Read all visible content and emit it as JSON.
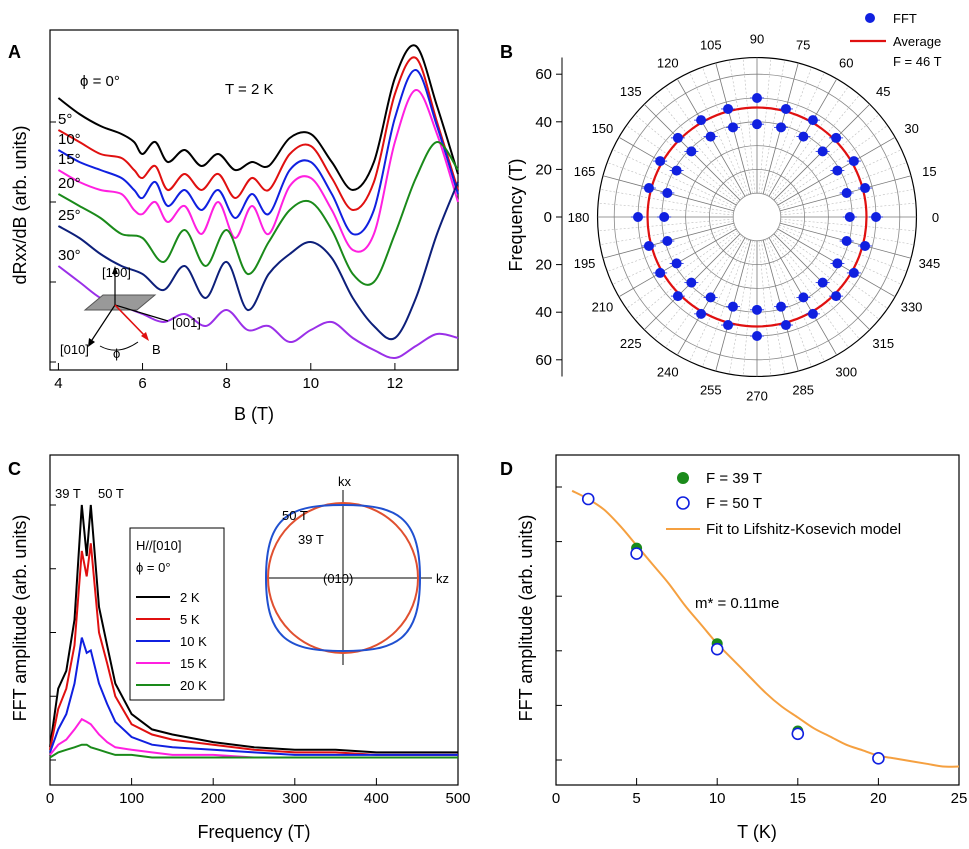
{
  "panels": {
    "A": {
      "letter": "A",
      "temp": "T = 2 K",
      "ylabel": "dRxx/dB (arb. units)",
      "xlabel": "B (T)",
      "inset": {
        "z": "[100]",
        "x": "[001]",
        "y": "[010]",
        "phi": "ϕ",
        "b": "B"
      }
    },
    "B": {
      "letter": "B",
      "ylabel": "Frequency (T)",
      "legend_fft": "FFT",
      "legend_avg": "Average",
      "avg_note": "F = 46 T"
    },
    "C": {
      "letter": "C",
      "xlabel": "Frequency (T)",
      "ylabel": "FFT amplitude (arb. units)",
      "peak1": "39 T",
      "peak2": "50 T",
      "legend_title1": "H//[010]",
      "legend_title2": "ϕ = 0°",
      "inset": {
        "kx": "kx",
        "kz": "kz",
        "plane": "(010)",
        "outer": "50 T",
        "inner": "39 T"
      }
    },
    "D": {
      "letter": "D",
      "xlabel": "T (K)",
      "ylabel": "FFT amplitude (arb. units)",
      "mass": "m* = 0.11me"
    }
  },
  "chart_data": [
    {
      "type": "line",
      "panel": "A",
      "xlabel": "B (T)",
      "ylabel": "dRxx/dB (arb. units)",
      "xlim": [
        3.8,
        13.5
      ],
      "xticks": [
        4,
        6,
        8,
        10,
        12
      ],
      "series": [
        {
          "name": "ϕ = 0°",
          "color": "#000000",
          "x": [
            4,
            4.5,
            5,
            5.5,
            5.8,
            6,
            6.3,
            6.6,
            7,
            7.4,
            7.8,
            8.2,
            8.6,
            9,
            9.5,
            10,
            10.5,
            11,
            11.5,
            12,
            12.5,
            13,
            13.5
          ],
          "y": [
            8.6,
            8.2,
            7.9,
            7.7,
            7.5,
            7.2,
            7.5,
            7.0,
            7.3,
            6.9,
            7.2,
            6.8,
            7.0,
            6.9,
            7.6,
            7.7,
            7.0,
            6.3,
            7.0,
            9.1,
            9.9,
            8.4,
            6.7
          ]
        },
        {
          "name": "5°",
          "color": "#e01010",
          "x": [
            4,
            4.5,
            5,
            5.5,
            5.8,
            6,
            6.3,
            6.6,
            7,
            7.4,
            7.8,
            8.2,
            8.6,
            9,
            9.5,
            10,
            10.5,
            11,
            11.5,
            12,
            12.5,
            13,
            13.5
          ],
          "y": [
            7.8,
            7.5,
            7.2,
            7.1,
            6.8,
            6.6,
            6.9,
            6.3,
            6.7,
            6.3,
            6.7,
            6.1,
            6.6,
            6.3,
            7.2,
            7.4,
            6.6,
            5.8,
            6.5,
            8.7,
            9.6,
            8.0,
            6.3
          ]
        },
        {
          "name": "10°",
          "color": "#1020e0",
          "x": [
            4,
            4.5,
            5,
            5.5,
            5.8,
            6,
            6.3,
            6.6,
            7,
            7.4,
            7.8,
            8.2,
            8.6,
            9,
            9.5,
            10,
            10.5,
            11,
            11.5,
            12,
            12.5,
            13,
            13.5
          ],
          "y": [
            7.3,
            7.0,
            6.8,
            6.6,
            6.3,
            6.1,
            6.5,
            5.9,
            6.3,
            5.8,
            6.3,
            5.6,
            6.2,
            5.7,
            6.8,
            7.0,
            6.2,
            5.2,
            5.8,
            8.1,
            9.3,
            7.9,
            6.2
          ]
        },
        {
          "name": "15°",
          "color": "#ff20e0",
          "x": [
            4,
            4.5,
            5,
            5.5,
            5.8,
            6,
            6.3,
            6.6,
            7,
            7.4,
            7.8,
            8.2,
            8.6,
            9,
            9.5,
            10,
            10.5,
            11,
            11.5,
            12,
            12.5,
            13,
            13.5
          ],
          "y": [
            6.8,
            6.5,
            6.3,
            6.2,
            5.8,
            5.7,
            6.0,
            5.5,
            5.9,
            5.2,
            6.0,
            5.1,
            5.9,
            5.2,
            6.4,
            6.6,
            5.8,
            4.8,
            5.2,
            7.5,
            8.8,
            7.7,
            6.0
          ]
        },
        {
          "name": "20°",
          "color": "#1a8a1a",
          "x": [
            4,
            4.5,
            5,
            5.5,
            6,
            6.5,
            7,
            7.5,
            8,
            8.5,
            9,
            9.5,
            10,
            10.5,
            11,
            11.5,
            12,
            12.5,
            13,
            13.5
          ],
          "y": [
            6.2,
            5.9,
            5.6,
            5.2,
            5.1,
            4.5,
            5.3,
            4.4,
            5.3,
            4.2,
            5.0,
            5.8,
            6.0,
            5.3,
            4.2,
            4.0,
            5.2,
            6.6,
            7.5,
            6.8
          ]
        },
        {
          "name": "25°",
          "color": "#0d1f7a",
          "x": [
            4,
            4.5,
            5,
            5.5,
            6,
            6.5,
            7,
            7.5,
            8,
            8.5,
            9,
            9.5,
            10,
            10.5,
            11,
            11.5,
            12,
            12.5,
            13,
            13.5
          ],
          "y": [
            5.4,
            5.1,
            4.7,
            4.4,
            4.2,
            3.8,
            4.4,
            3.6,
            4.5,
            3.3,
            4.2,
            4.7,
            5.0,
            4.6,
            3.6,
            2.9,
            2.6,
            3.6,
            5.2,
            6.5
          ]
        },
        {
          "name": "30°",
          "color": "#9a30e8",
          "x": [
            4,
            4.5,
            5,
            5.5,
            6,
            6.5,
            7,
            7.5,
            8,
            8.5,
            9,
            9.5,
            10,
            10.5,
            11,
            11.5,
            12,
            12.5,
            13,
            13.5
          ],
          "y": [
            4.4,
            4.0,
            3.6,
            3.4,
            3.2,
            3.0,
            3.2,
            2.9,
            3.3,
            2.8,
            2.9,
            2.5,
            2.8,
            3.0,
            2.6,
            2.3,
            2.1,
            2.4,
            2.7,
            2.6
          ]
        }
      ]
    },
    {
      "type": "scatter",
      "panel": "B",
      "projection": "polar",
      "ylabel": "Frequency (T)",
      "radial_ticks": [
        0,
        20,
        40,
        60
      ],
      "angle_ticks": [
        0,
        15,
        30,
        45,
        60,
        75,
        90,
        105,
        120,
        135,
        150,
        165,
        180,
        195,
        210,
        225,
        240,
        255,
        270,
        285,
        300,
        315,
        330,
        345
      ],
      "series": [
        {
          "name": "FFT",
          "color": "#1020e0",
          "angle": [
            0,
            0,
            15,
            15,
            30,
            30,
            45,
            45,
            60,
            60,
            75,
            75,
            90,
            90,
            105,
            105,
            120,
            120,
            135,
            135,
            150,
            150,
            165,
            165,
            180,
            180,
            195,
            195,
            210,
            210,
            225,
            225,
            240,
            240,
            255,
            255,
            270,
            270,
            285,
            285,
            300,
            300,
            315,
            315,
            330,
            330,
            345,
            345
          ],
          "r": [
            39,
            50,
            39,
            47,
            39,
            47,
            39,
            47,
            39,
            47,
            39,
            47,
            39,
            50,
            39,
            47,
            39,
            47,
            39,
            47,
            39,
            47,
            39,
            47,
            39,
            50,
            39,
            47,
            39,
            47,
            39,
            47,
            39,
            47,
            39,
            47,
            39,
            50,
            39,
            47,
            39,
            47,
            39,
            47,
            39,
            47,
            39,
            47
          ]
        },
        {
          "name": "Average",
          "color": "#e01010",
          "r_const": 46
        }
      ]
    },
    {
      "type": "line",
      "panel": "C",
      "xlabel": "Frequency (T)",
      "ylabel": "FFT amplitude (arb. units)",
      "xlim": [
        0,
        500
      ],
      "xticks": [
        0,
        100,
        200,
        300,
        400,
        500
      ],
      "series": [
        {
          "name": "2 K",
          "color": "#000000",
          "x": [
            0,
            10,
            20,
            30,
            39,
            45,
            50,
            60,
            70,
            80,
            100,
            125,
            150,
            200,
            250,
            300,
            350,
            400,
            450,
            500
          ],
          "y": [
            0.05,
            0.28,
            0.35,
            0.55,
            1.0,
            0.8,
            1.0,
            0.6,
            0.45,
            0.3,
            0.18,
            0.12,
            0.1,
            0.07,
            0.05,
            0.04,
            0.04,
            0.03,
            0.03,
            0.03
          ]
        },
        {
          "name": "5 K",
          "color": "#e01010",
          "x": [
            0,
            10,
            20,
            30,
            39,
            45,
            50,
            60,
            70,
            80,
            100,
            125,
            150,
            200,
            250,
            300,
            350,
            400,
            450,
            500
          ],
          "y": [
            0.04,
            0.2,
            0.28,
            0.45,
            0.82,
            0.72,
            0.85,
            0.5,
            0.38,
            0.25,
            0.14,
            0.1,
            0.08,
            0.06,
            0.04,
            0.03,
            0.03,
            0.02,
            0.02,
            0.02
          ]
        },
        {
          "name": "10 K",
          "color": "#1020e0",
          "x": [
            0,
            10,
            20,
            30,
            39,
            45,
            50,
            60,
            70,
            80,
            100,
            125,
            150,
            200,
            250,
            300,
            350,
            400,
            450,
            500
          ],
          "y": [
            0.03,
            0.12,
            0.18,
            0.3,
            0.48,
            0.42,
            0.43,
            0.3,
            0.22,
            0.15,
            0.09,
            0.06,
            0.05,
            0.04,
            0.03,
            0.02,
            0.02,
            0.02,
            0.02,
            0.02
          ]
        },
        {
          "name": "15 K",
          "color": "#ff20e0",
          "x": [
            0,
            10,
            20,
            30,
            39,
            45,
            50,
            60,
            70,
            80,
            100,
            125,
            150,
            200,
            250,
            300,
            350,
            400,
            450,
            500
          ],
          "y": [
            0.02,
            0.06,
            0.08,
            0.12,
            0.16,
            0.15,
            0.14,
            0.1,
            0.07,
            0.05,
            0.04,
            0.03,
            0.02,
            0.02,
            0.01,
            0.01,
            0.01,
            0.01,
            0.01,
            0.01
          ]
        },
        {
          "name": "20 K",
          "color": "#1a8a1a",
          "x": [
            0,
            10,
            20,
            30,
            39,
            45,
            50,
            60,
            70,
            80,
            100,
            125,
            150,
            200,
            250,
            300,
            350,
            400,
            450,
            500
          ],
          "y": [
            0.01,
            0.03,
            0.04,
            0.05,
            0.06,
            0.06,
            0.05,
            0.04,
            0.03,
            0.02,
            0.02,
            0.01,
            0.01,
            0.01,
            0.01,
            0.01,
            0.01,
            0.01,
            0.01,
            0.01
          ]
        }
      ]
    },
    {
      "type": "scatter",
      "panel": "D",
      "xlabel": "T (K)",
      "ylabel": "FFT amplitude (arb. units)",
      "xlim": [
        0,
        25
      ],
      "xticks": [
        0,
        5,
        10,
        15,
        20,
        25
      ],
      "series": [
        {
          "name": "F = 39 T",
          "color": "#1a8a1a",
          "style": "filled",
          "x": [
            5,
            10,
            15
          ],
          "y": [
            0.82,
            0.47,
            0.15
          ]
        },
        {
          "name": "F = 50 T",
          "color": "#1020e0",
          "style": "open",
          "x": [
            2,
            5,
            10,
            15,
            20
          ],
          "y": [
            1.0,
            0.8,
            0.45,
            0.14,
            0.05
          ]
        },
        {
          "name": "Fit to Lifshitz-Kosevich model",
          "color": "#f5a040",
          "style": "line",
          "x": [
            1,
            2,
            3,
            4,
            5,
            6,
            7,
            8,
            9,
            10,
            11,
            12,
            13,
            14,
            15,
            16,
            17,
            18,
            19,
            20,
            21,
            22,
            23,
            24,
            25
          ],
          "y": [
            1.03,
            1.0,
            0.96,
            0.9,
            0.83,
            0.76,
            0.69,
            0.61,
            0.54,
            0.47,
            0.41,
            0.35,
            0.29,
            0.24,
            0.2,
            0.16,
            0.13,
            0.1,
            0.08,
            0.06,
            0.05,
            0.04,
            0.03,
            0.02,
            0.02
          ]
        }
      ]
    }
  ]
}
